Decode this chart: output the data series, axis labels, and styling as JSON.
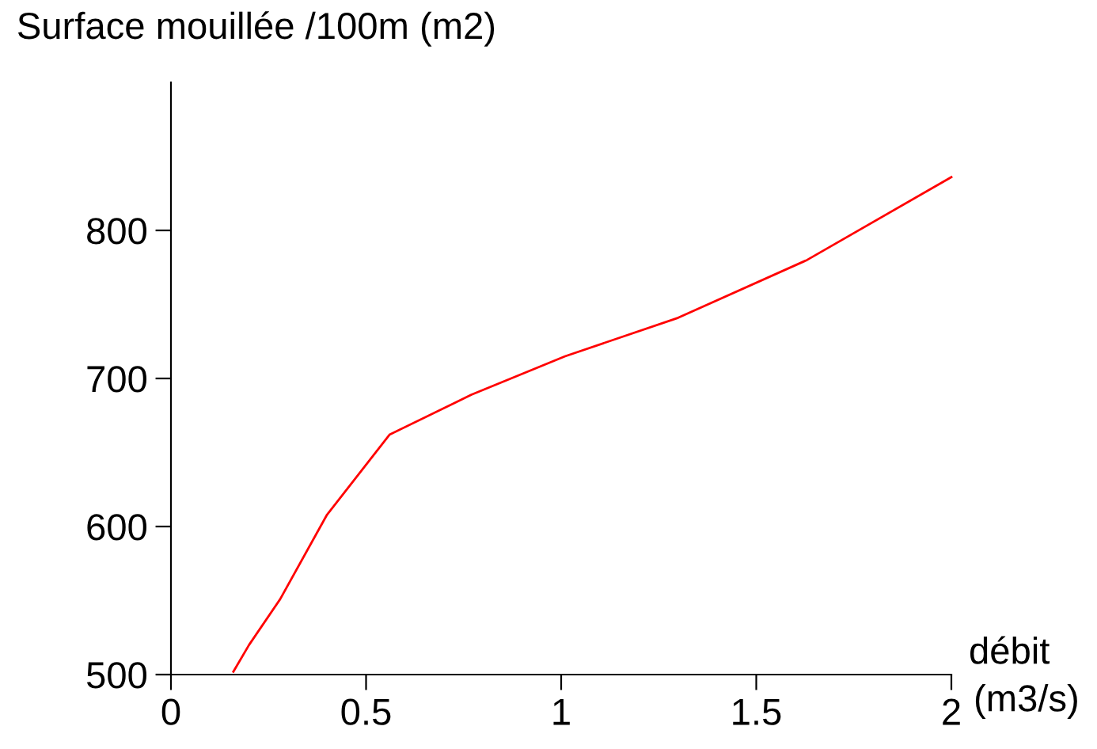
{
  "chart_data": {
    "type": "line",
    "xlabel": "débit (m3/s)",
    "ylabel": "Surface mouillée /100m (m2)",
    "series": [
      {
        "color": "#ff0000",
        "x": [
          0.16,
          0.2,
          0.28,
          0.4,
          0.56,
          0.77,
          1.01,
          1.3,
          1.63,
          2.0
        ],
        "values": [
          502,
          520,
          551,
          608,
          662,
          689,
          715,
          741,
          780,
          836
        ]
      }
    ],
    "xlim": [
      0,
      2
    ],
    "xticks": [
      0,
      0.5,
      1,
      1.5,
      2
    ],
    "ylim": [
      500,
      900
    ],
    "yticks": [
      500,
      600,
      700,
      800
    ],
    "grid": false,
    "legend": false,
    "marker": "none",
    "line_style": "solid"
  }
}
